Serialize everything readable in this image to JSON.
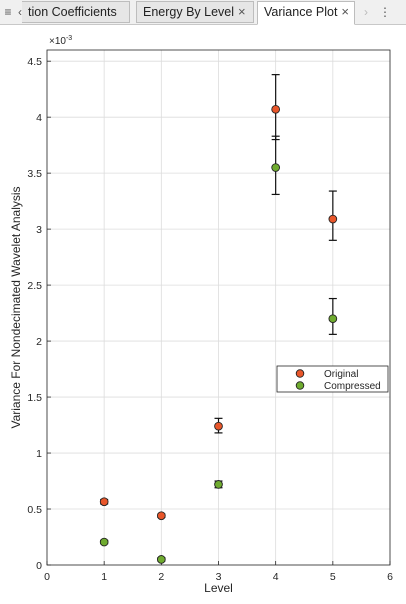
{
  "tabs": {
    "menu_icon": "≡",
    "left_arrow": "‹",
    "right_arrow": "›",
    "more_icon": "⋮",
    "items": [
      {
        "label": "tion Coefficients",
        "active": false
      },
      {
        "label": "Energy By Level",
        "active": false,
        "close": "×"
      },
      {
        "label": "Variance Plot",
        "active": true,
        "close": "×"
      }
    ]
  },
  "chart_data": {
    "type": "scatter",
    "xlabel": "Level",
    "ylabel": "Variance For Nondecimated Wavelet Analysis",
    "y_exponent_label": "×10",
    "y_exponent_power": "-3",
    "xlim": [
      0,
      6
    ],
    "ylim": [
      0,
      4.6
    ],
    "x_ticks": [
      "0",
      "1",
      "2",
      "3",
      "4",
      "5",
      "6"
    ],
    "y_ticks": [
      "0",
      "0.5",
      "1",
      "1.5",
      "2",
      "2.5",
      "3",
      "3.5",
      "4",
      "4.5"
    ],
    "grid": true,
    "legend_position": "right",
    "series": [
      {
        "name": "Original",
        "color": "#e8562a",
        "x": [
          1,
          2,
          3,
          4,
          5
        ],
        "y": [
          0.565,
          0.44,
          1.24,
          4.07,
          3.09
        ],
        "err_low": [
          0.545,
          0.425,
          1.18,
          3.8,
          2.9
        ],
        "err_high": [
          0.585,
          0.455,
          1.31,
          4.38,
          3.34
        ]
      },
      {
        "name": "Compressed",
        "color": "#6fab2f",
        "x": [
          1,
          2,
          3,
          4,
          5
        ],
        "y": [
          0.205,
          0.05,
          0.72,
          3.55,
          2.2
        ],
        "err_low": [
          0.19,
          0.035,
          0.69,
          3.31,
          2.06
        ],
        "err_high": [
          0.22,
          0.065,
          0.75,
          3.83,
          2.38
        ]
      }
    ]
  }
}
